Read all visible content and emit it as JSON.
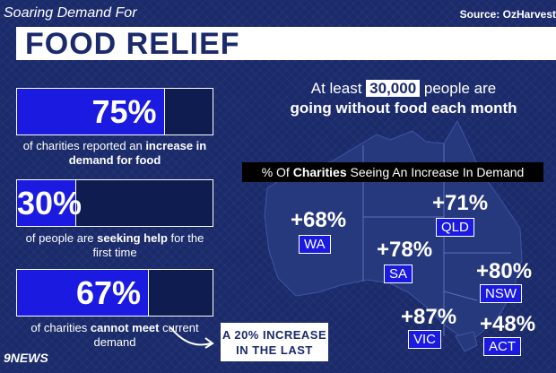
{
  "header": {
    "subtitle": "Soaring Demand For",
    "title": "FOOD RELIEF",
    "source": "Source: OzHarvest"
  },
  "stats": [
    {
      "value_label": "75%",
      "percent": 75,
      "desc_pre": "of charities reported an ",
      "desc_bold": "increase in demand for food",
      "desc_post": ""
    },
    {
      "value_label": "30%",
      "percent": 30,
      "desc_pre": "of people are ",
      "desc_bold": "seeking help",
      "desc_post": " for the first time"
    },
    {
      "value_label": "67%",
      "percent": 67,
      "desc_pre": "of charities ",
      "desc_bold": "cannot meet",
      "desc_post": " current demand"
    }
  ],
  "headline": {
    "pre": "At least ",
    "number": "30,000",
    "post": " people are",
    "line2": "going without food each month"
  },
  "increase_callout": {
    "line1": "A 20% INCREASE",
    "line2": "IN THE LAST YEAR"
  },
  "logo": "9NEWS",
  "chart_data": {
    "type": "map",
    "title_pre": "% Of ",
    "title_bold": "Charities",
    "title_post": " Seeing An Increase In Demand",
    "states": [
      {
        "name": "WA",
        "label": "+68%",
        "value": 68
      },
      {
        "name": "QLD",
        "label": "+71%",
        "value": 71
      },
      {
        "name": "SA",
        "label": "+78%",
        "value": 78
      },
      {
        "name": "NSW",
        "label": "+80%",
        "value": 80
      },
      {
        "name": "VIC",
        "label": "+87%",
        "value": 87
      },
      {
        "name": "ACT",
        "label": "+48%",
        "value": 48
      }
    ]
  },
  "colors": {
    "background": "#1a2a6a",
    "accent": "#1a1ae0",
    "map": "#27397d"
  }
}
